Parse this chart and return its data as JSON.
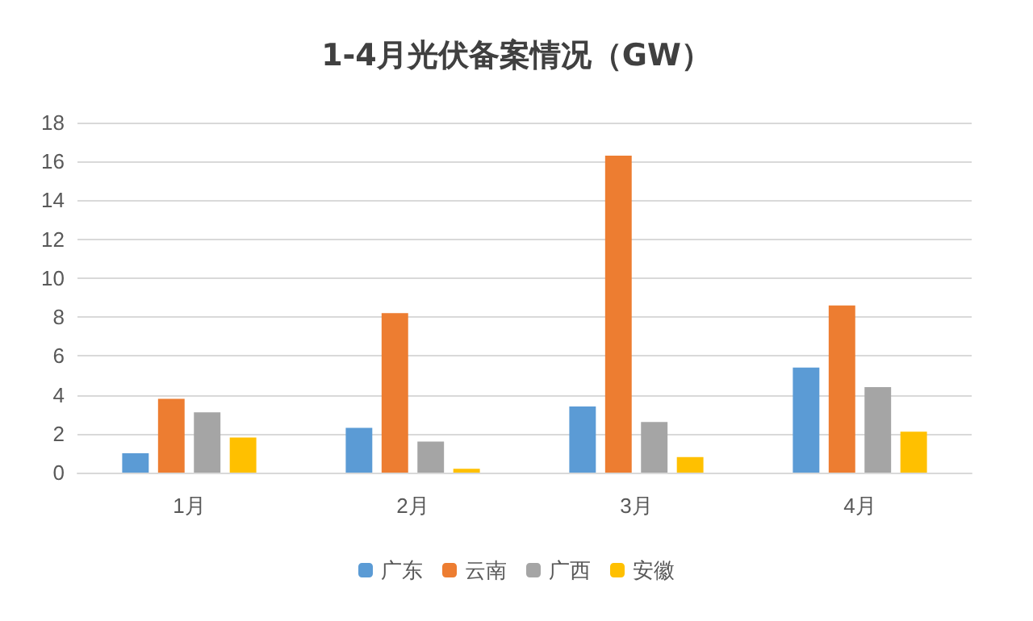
{
  "chart_data": {
    "type": "bar",
    "title": "1-4月光伏备案情况（GW）",
    "categories": [
      "1月",
      "2月",
      "3月",
      "4月"
    ],
    "series": [
      {
        "name": "广东",
        "color": "#5b9bd5",
        "values": [
          1.0,
          2.3,
          3.4,
          5.4
        ]
      },
      {
        "name": "云南",
        "color": "#ed7d31",
        "values": [
          3.8,
          8.2,
          16.3,
          8.6
        ]
      },
      {
        "name": "广西",
        "color": "#a5a5a5",
        "values": [
          3.1,
          1.6,
          2.6,
          4.4
        ]
      },
      {
        "name": "安徽",
        "color": "#ffc000",
        "values": [
          1.8,
          0.2,
          0.8,
          2.1
        ]
      }
    ],
    "ylim": [
      0,
      18
    ],
    "yticks": [
      0,
      2,
      4,
      6,
      8,
      10,
      12,
      14,
      16,
      18
    ],
    "grid": "y",
    "legend": "bottom"
  }
}
